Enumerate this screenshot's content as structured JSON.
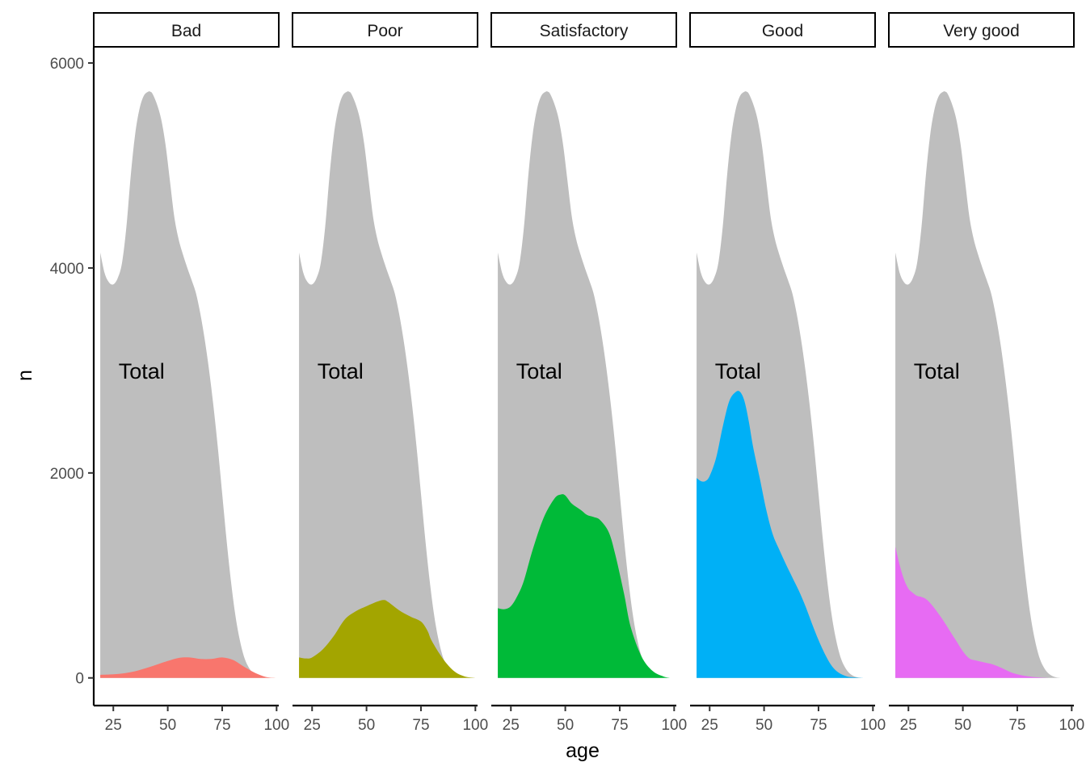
{
  "chart_data": {
    "type": "area",
    "facet_by": "health",
    "xlabel": "age",
    "ylabel": "n",
    "xlim": [
      16,
      101
    ],
    "ylim": [
      -270,
      6150
    ],
    "x_ticks": [
      25,
      50,
      75,
      100
    ],
    "y_ticks": [
      0,
      2000,
      4000,
      6000
    ],
    "grid": false,
    "legend": "none",
    "total_label": "Total",
    "total_label_position": {
      "x": 38,
      "y": 3000
    },
    "total_color": "#BEBEBE",
    "total": {
      "x": [
        19,
        21,
        23,
        25,
        27,
        29,
        31,
        33,
        35,
        37,
        39,
        41,
        42,
        43,
        45,
        47,
        49,
        51,
        53,
        55,
        57,
        59,
        61,
        63,
        65,
        67,
        69,
        71,
        73,
        75,
        77,
        79,
        81,
        83,
        85,
        87,
        89,
        91,
        93,
        95,
        97,
        99,
        100
      ],
      "y": [
        4150,
        3950,
        3860,
        3840,
        3900,
        4050,
        4400,
        4900,
        5300,
        5550,
        5680,
        5720,
        5720,
        5700,
        5600,
        5450,
        5200,
        4850,
        4500,
        4280,
        4130,
        4000,
        3880,
        3750,
        3550,
        3300,
        3000,
        2650,
        2250,
        1800,
        1350,
        950,
        620,
        380,
        210,
        110,
        50,
        20,
        5,
        0,
        0,
        0,
        0
      ]
    },
    "series": [
      {
        "name": "Bad",
        "color": "#F8766D",
        "x": [
          19,
          25,
          30,
          35,
          40,
          45,
          50,
          55,
          60,
          65,
          70,
          75,
          80,
          85,
          90,
          95,
          100
        ],
        "y": [
          30,
          35,
          45,
          65,
          95,
          130,
          165,
          195,
          200,
          185,
          185,
          200,
          175,
          110,
          50,
          10,
          0
        ]
      },
      {
        "name": "Poor",
        "color": "#A3A500",
        "x": [
          19,
          22,
          25,
          30,
          35,
          40,
          45,
          50,
          55,
          58,
          60,
          65,
          70,
          75,
          78,
          80,
          85,
          90,
          95,
          100
        ],
        "y": [
          200,
          190,
          200,
          280,
          410,
          570,
          650,
          700,
          745,
          760,
          740,
          660,
          600,
          550,
          460,
          360,
          190,
          70,
          15,
          0
        ]
      },
      {
        "name": "Satisfactory",
        "color": "#00BA38",
        "x": [
          19,
          22,
          25,
          28,
          31,
          35,
          40,
          45,
          48,
          50,
          53,
          57,
          60,
          63,
          66,
          70,
          73,
          77,
          80,
          85,
          90,
          95,
          98
        ],
        "y": [
          680,
          670,
          700,
          800,
          950,
          1250,
          1560,
          1750,
          1790,
          1780,
          1700,
          1640,
          1590,
          1570,
          1540,
          1420,
          1200,
          820,
          500,
          210,
          70,
          15,
          0
        ]
      },
      {
        "name": "Good",
        "color": "#00B0F6",
        "x": [
          19,
          21,
          23,
          25,
          28,
          31,
          34,
          37,
          39,
          41,
          43,
          45,
          48,
          51,
          54,
          57,
          60,
          63,
          66,
          69,
          72,
          75,
          78,
          81,
          84,
          88,
          92,
          96,
          98
        ],
        "y": [
          1950,
          1920,
          1920,
          1970,
          2150,
          2450,
          2700,
          2790,
          2790,
          2700,
          2500,
          2250,
          1950,
          1640,
          1400,
          1250,
          1110,
          980,
          850,
          700,
          530,
          370,
          230,
          120,
          55,
          15,
          5,
          0,
          0
        ]
      },
      {
        "name": "Very good",
        "color": "#E76BF3",
        "x": [
          19,
          21,
          23,
          25,
          27,
          29,
          31,
          33,
          35,
          38,
          41,
          44,
          47,
          50,
          53,
          56,
          60,
          64,
          68,
          72,
          76,
          80,
          85,
          90,
          93
        ],
        "y": [
          1280,
          1100,
          960,
          870,
          830,
          800,
          790,
          770,
          730,
          650,
          560,
          460,
          360,
          260,
          190,
          170,
          150,
          130,
          95,
          55,
          30,
          15,
          5,
          0,
          0
        ]
      }
    ]
  }
}
